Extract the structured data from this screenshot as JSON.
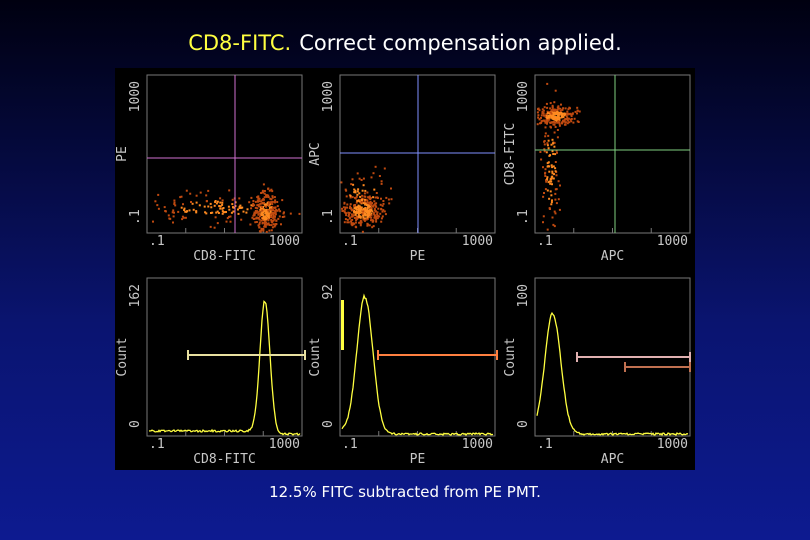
{
  "title": {
    "highlight": "CD8-FITC.",
    "text": "Correct compensation applied."
  },
  "panels": [
    {
      "x_label": "CD8-FITC",
      "y_label": "PE",
      "x_ticks": [
        ".1",
        "1000"
      ],
      "y_ticks": [
        ".1",
        "1000"
      ]
    },
    {
      "x_label": "PE",
      "y_label": "APC",
      "x_ticks": [
        ".1",
        "1000"
      ],
      "y_ticks": [
        ".1",
        "1000"
      ]
    },
    {
      "x_label": "APC",
      "y_label": "CD8-FITC",
      "x_ticks": [
        ".1",
        "1000"
      ],
      "y_ticks": [
        ".1",
        "1000"
      ]
    },
    {
      "x_label": "CD8-FITC",
      "y_label": "Count",
      "x_ticks": [
        ".1",
        "1000"
      ],
      "y_ticks": [
        "0",
        "162"
      ]
    },
    {
      "x_label": "PE",
      "y_label": "Count",
      "x_ticks": [
        ".1",
        "1000"
      ],
      "y_ticks": [
        "0",
        "92"
      ]
    },
    {
      "x_label": "APC",
      "y_label": "Count",
      "x_ticks": [
        ".1",
        "1000"
      ],
      "y_ticks": [
        "0",
        "100"
      ]
    }
  ],
  "caption": "12.5% FITC subtracted from PE PMT."
}
